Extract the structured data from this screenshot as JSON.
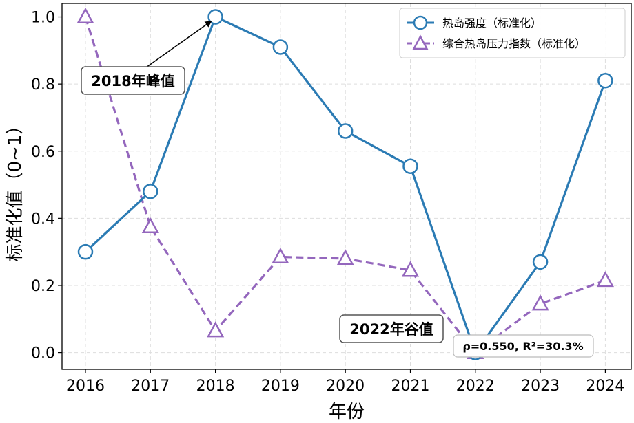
{
  "chart_data": {
    "type": "line",
    "xlabel": "年份",
    "ylabel": "标准化值（0~1）",
    "ylim": [
      -0.05,
      1.04
    ],
    "yticks": [
      "0.0",
      "0.2",
      "0.4",
      "0.6",
      "0.8",
      "1.0"
    ],
    "grid": true,
    "legend_position": "top-right",
    "categories": [
      "2016",
      "2017",
      "2018",
      "2019",
      "2020",
      "2021",
      "2022",
      "2023",
      "2024"
    ],
    "series": [
      {
        "name": "热岛强度（标准化）",
        "color": "#2b7bb4",
        "marker": "circle",
        "line": "solid",
        "values": [
          0.3,
          0.48,
          1.0,
          0.91,
          0.66,
          0.555,
          0.0,
          0.27,
          0.81
        ]
      },
      {
        "name": "综合热岛压力指数（标准化）",
        "color": "#9467bd",
        "marker": "triangle",
        "line": "dashed",
        "values": [
          1.0,
          0.375,
          0.065,
          0.285,
          0.28,
          0.245,
          0.0,
          0.145,
          0.215
        ]
      }
    ],
    "annotations": {
      "peak": {
        "text": "2018年峰值",
        "target_year": "2018",
        "target_value": 1.0
      },
      "valley": {
        "text": "2022年谷值",
        "target_year": "2022",
        "target_value": 0.0
      },
      "stats": "ρ=0.550, R²=30.3%"
    }
  }
}
